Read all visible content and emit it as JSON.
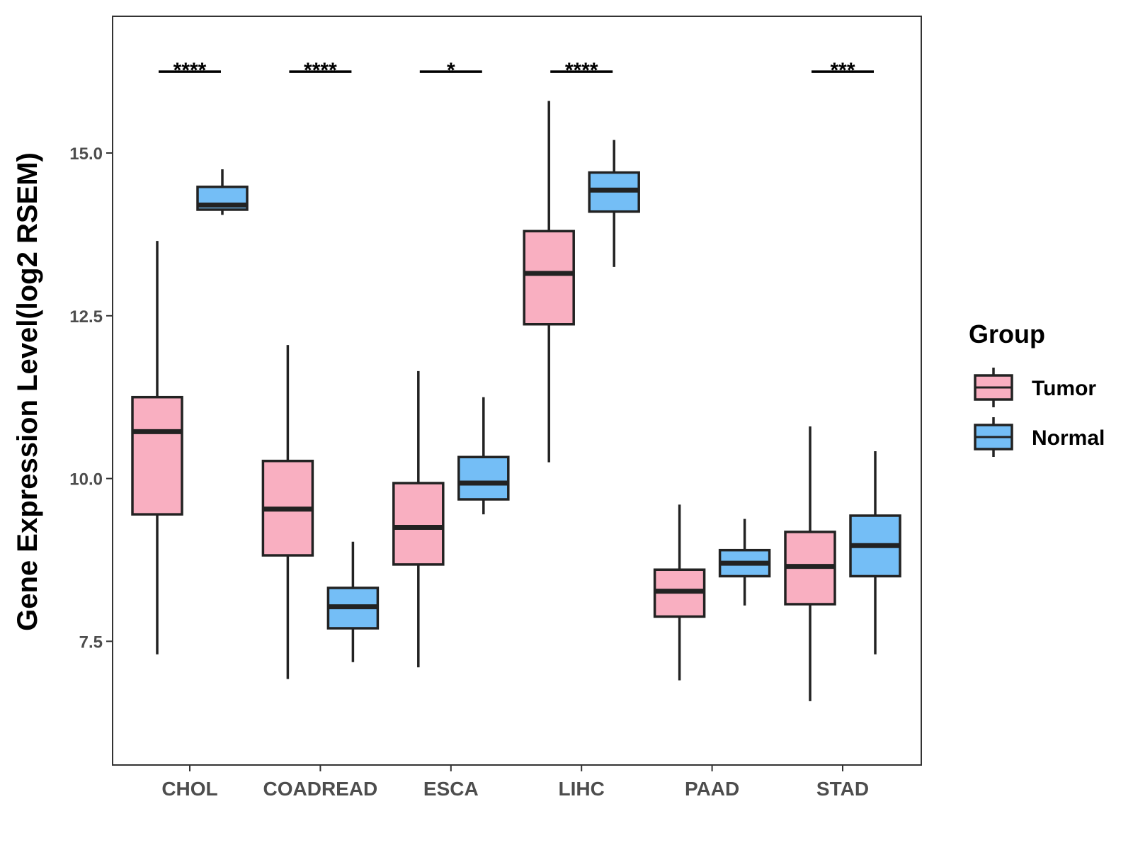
{
  "chart_data": {
    "type": "boxplot",
    "title": "",
    "xlabel": "",
    "ylabel": "Gene Expression Level(log2 RSEM)",
    "ylim": [
      5.6,
      17.1
    ],
    "yticks": [
      7.5,
      10.0,
      12.5,
      15.0
    ],
    "ytick_labels": [
      "7.5",
      "10.0",
      "12.5",
      "15.0"
    ],
    "categories": [
      "CHOL",
      "COADREAD",
      "ESCA",
      "LIHC",
      "PAAD",
      "STAD"
    ],
    "legend": {
      "title": "Group",
      "position": "right",
      "entries": [
        {
          "name": "Tumor",
          "color": "#F9AFC1"
        },
        {
          "name": "Normal",
          "color": "#74BEF6"
        }
      ]
    },
    "series": [
      {
        "name": "Tumor",
        "color": "#F9AFC1",
        "boxes": [
          {
            "whisker_low": 7.3,
            "q1": 9.45,
            "median": 10.72,
            "q3": 11.25,
            "whisker_high": 13.65
          },
          {
            "whisker_low": 6.92,
            "q1": 8.82,
            "median": 9.53,
            "q3": 10.27,
            "whisker_high": 12.05
          },
          {
            "whisker_low": 7.1,
            "q1": 8.68,
            "median": 9.25,
            "q3": 9.93,
            "whisker_high": 11.65
          },
          {
            "whisker_low": 10.25,
            "q1": 12.37,
            "median": 13.15,
            "q3": 13.8,
            "whisker_high": 15.8
          },
          {
            "whisker_low": 6.9,
            "q1": 7.88,
            "median": 8.27,
            "q3": 8.6,
            "whisker_high": 9.6
          },
          {
            "whisker_low": 6.58,
            "q1": 8.07,
            "median": 8.65,
            "q3": 9.18,
            "whisker_high": 10.8
          }
        ]
      },
      {
        "name": "Normal",
        "color": "#74BEF6",
        "boxes": [
          {
            "whisker_low": 14.05,
            "q1": 14.13,
            "median": 14.2,
            "q3": 14.48,
            "whisker_high": 14.75
          },
          {
            "whisker_low": 7.18,
            "q1": 7.7,
            "median": 8.03,
            "q3": 8.32,
            "whisker_high": 9.03
          },
          {
            "whisker_low": 9.45,
            "q1": 9.68,
            "median": 9.93,
            "q3": 10.33,
            "whisker_high": 11.25
          },
          {
            "whisker_low": 13.25,
            "q1": 14.1,
            "median": 14.43,
            "q3": 14.7,
            "whisker_high": 15.2
          },
          {
            "whisker_low": 8.05,
            "q1": 8.5,
            "median": 8.7,
            "q3": 8.9,
            "whisker_high": 9.38
          },
          {
            "whisker_low": 7.3,
            "q1": 8.5,
            "median": 8.97,
            "q3": 9.43,
            "whisker_high": 10.42
          }
        ]
      }
    ],
    "significance": [
      {
        "category": "CHOL",
        "label": "****"
      },
      {
        "category": "COADREAD",
        "label": "****"
      },
      {
        "category": "ESCA",
        "label": "*"
      },
      {
        "category": "LIHC",
        "label": "****"
      },
      {
        "category": "PAAD",
        "label": ""
      },
      {
        "category": "STAD",
        "label": "***"
      }
    ],
    "significance_level": 16.25
  }
}
